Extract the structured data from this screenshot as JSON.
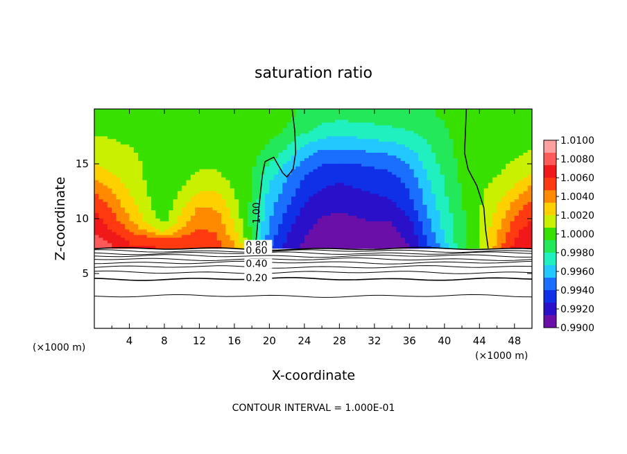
{
  "chart_data": {
    "type": "heatmap",
    "title": "saturation ratio",
    "xlabel": "X-coordinate",
    "ylabel": "Z-coordinate",
    "x_unit_left": "(×1000 m)",
    "x_unit_right": "(×1000 m)",
    "xlim": [
      0,
      50
    ],
    "ylim": [
      0,
      20
    ],
    "xticks": [
      4,
      8,
      12,
      16,
      20,
      24,
      28,
      32,
      36,
      40,
      44,
      48
    ],
    "yticks": [
      5,
      10,
      15
    ],
    "colorbar": {
      "ticks": [
        "1.0100",
        "1.0080",
        "1.0060",
        "1.0040",
        "1.0020",
        "1.0000",
        "0.9980",
        "0.9960",
        "0.9940",
        "0.9920",
        "0.9900"
      ],
      "min": 0.99,
      "max": 1.01,
      "colors": [
        "#6a0fa8",
        "#2a10c8",
        "#1030e8",
        "#1a6fff",
        "#22c8ff",
        "#20f0c0",
        "#22e85a",
        "#38e000",
        "#c8f000",
        "#ffd000",
        "#ff8a00",
        "#ff3a10",
        "#f01818",
        "#ff5a5a",
        "#ffa0a0"
      ]
    },
    "field": {
      "rows_y": [
        7.3,
        8,
        9,
        10,
        11,
        12,
        13,
        14,
        15,
        16,
        17,
        18,
        19.5
      ],
      "cols_x": [
        0,
        2,
        4,
        6,
        8,
        10,
        12,
        14,
        16,
        18,
        20,
        22,
        24,
        26,
        28,
        30,
        32,
        34,
        36,
        38,
        40,
        42,
        44,
        46,
        48,
        50
      ],
      "values": [
        [
          1.0085,
          1.0075,
          1.006,
          1.0062,
          1.006,
          1.0058,
          1.0055,
          1.0052,
          1.004,
          1.0,
          0.994,
          0.992,
          0.991,
          0.9908,
          0.9905,
          0.9905,
          0.9905,
          0.9906,
          0.9912,
          0.9935,
          0.996,
          0.999,
          1.0005,
          1.004,
          1.0065,
          1.0075
        ],
        [
          1.008,
          1.007,
          1.006,
          1.0058,
          1.0055,
          1.0056,
          1.0056,
          1.005,
          1.003,
          0.9995,
          0.9945,
          0.9925,
          0.9912,
          0.9908,
          0.9905,
          0.9905,
          0.9905,
          0.9907,
          0.9915,
          0.994,
          0.9965,
          0.999,
          1.0005,
          1.0035,
          1.006,
          1.0072
        ],
        [
          1.007,
          1.006,
          1.0045,
          1.003,
          1.0015,
          1.0035,
          1.0048,
          1.0045,
          1.0022,
          0.999,
          0.995,
          0.993,
          0.9915,
          0.991,
          0.9908,
          0.9908,
          0.9908,
          0.991,
          0.992,
          0.9945,
          0.997,
          0.999,
          1.0005,
          1.003,
          1.0055,
          1.0068
        ],
        [
          1.0065,
          1.0052,
          1.0035,
          1.0015,
          1.0,
          1.0025,
          1.0042,
          1.004,
          1.0018,
          0.9988,
          0.9955,
          0.9935,
          0.992,
          0.9912,
          0.991,
          0.9912,
          0.9915,
          0.9915,
          0.9925,
          0.995,
          0.9972,
          0.999,
          1.0005,
          1.0025,
          1.0048,
          1.006
        ],
        [
          1.006,
          1.0045,
          1.0028,
          1.001,
          0.9998,
          1.0018,
          1.0035,
          1.0032,
          1.0012,
          0.999,
          0.9958,
          0.994,
          0.9925,
          0.9918,
          0.9915,
          0.9918,
          0.992,
          0.9922,
          0.9932,
          0.9955,
          0.9975,
          0.9992,
          1.0005,
          1.002,
          1.004,
          1.0055
        ],
        [
          1.005,
          1.0038,
          1.0022,
          1.0008,
          0.9998,
          1.001,
          1.0025,
          1.0025,
          1.0008,
          0.9992,
          0.9962,
          0.9945,
          0.993,
          0.9922,
          0.992,
          0.9922,
          0.9925,
          0.9928,
          0.9938,
          0.9958,
          0.9978,
          0.9994,
          1.0005,
          1.0015,
          1.003,
          1.0045
        ],
        [
          1.004,
          1.003,
          1.0018,
          1.0006,
          1.0,
          1.0005,
          1.0015,
          1.0015,
          1.0005,
          0.9993,
          0.9966,
          0.995,
          0.9935,
          0.9928,
          0.9925,
          0.9928,
          0.993,
          0.9932,
          0.9942,
          0.9962,
          0.998,
          0.9995,
          1.0004,
          1.001,
          1.002,
          1.0035
        ],
        [
          1.003,
          1.0022,
          1.0012,
          1.0005,
          1.0002,
          1.0004,
          1.0008,
          1.0008,
          1.0003,
          0.9994,
          0.9972,
          0.9955,
          0.994,
          0.9932,
          0.993,
          0.9932,
          0.9935,
          0.9938,
          0.9948,
          0.9966,
          0.9982,
          0.9996,
          1.0003,
          1.0006,
          1.0012,
          1.0022
        ],
        [
          1.002,
          1.0015,
          1.001,
          1.0005,
          1.0003,
          1.0004,
          1.0005,
          1.0005,
          1.0002,
          0.9996,
          0.998,
          0.9965,
          0.9948,
          0.994,
          0.9938,
          0.994,
          0.9942,
          0.9945,
          0.9955,
          0.997,
          0.9985,
          0.9997,
          1.0002,
          1.0004,
          1.0008,
          1.0012
        ],
        [
          1.0012,
          1.001,
          1.0008,
          1.0005,
          1.0004,
          1.0004,
          1.0004,
          1.0004,
          1.0002,
          0.9998,
          0.9988,
          0.9975,
          0.9958,
          0.995,
          0.9948,
          0.995,
          0.9952,
          0.9955,
          0.9962,
          0.9975,
          0.9988,
          0.9998,
          1.0002,
          1.0003,
          1.0005,
          1.0008
        ],
        [
          1.0008,
          1.0007,
          1.0006,
          1.0005,
          1.0004,
          1.0004,
          1.0004,
          1.0004,
          1.0003,
          1.0,
          0.9993,
          0.9985,
          0.997,
          0.9962,
          0.996,
          0.9962,
          0.9964,
          0.9966,
          0.997,
          0.998,
          0.999,
          0.9998,
          1.0002,
          1.0003,
          1.0004,
          1.0005
        ],
        [
          1.0006,
          1.0006,
          1.0005,
          1.0005,
          1.0004,
          1.0004,
          1.0004,
          1.0004,
          1.0003,
          1.0002,
          0.9997,
          0.9992,
          0.9982,
          0.9975,
          0.9972,
          0.9973,
          0.9975,
          0.9977,
          0.998,
          0.9985,
          0.9992,
          0.9998,
          1.0002,
          1.0003,
          1.0004,
          1.0004
        ],
        [
          1.0005,
          1.0005,
          1.0005,
          1.0004,
          1.0004,
          1.0004,
          1.0004,
          1.0004,
          1.0003,
          1.0003,
          1.0001,
          0.9996,
          0.999,
          0.9986,
          0.9984,
          0.9985,
          0.9986,
          0.9987,
          0.9989,
          0.9992,
          0.9995,
          0.9999,
          1.0002,
          1.0003,
          1.0003,
          1.0003
        ]
      ]
    },
    "contour_labels": [
      {
        "text": "1.00",
        "x": 18.5,
        "y": 10.5
      },
      {
        "text": "0.80",
        "x": 17.3,
        "y": 7.3
      },
      {
        "text": "0.60",
        "x": 17.3,
        "y": 6.8
      },
      {
        "text": "0.40",
        "x": 17.3,
        "y": 5.6
      },
      {
        "text": "0.20",
        "x": 17.3,
        "y": 4.3
      }
    ],
    "footer": "CONTOUR INTERVAL = 1.000E-01"
  }
}
